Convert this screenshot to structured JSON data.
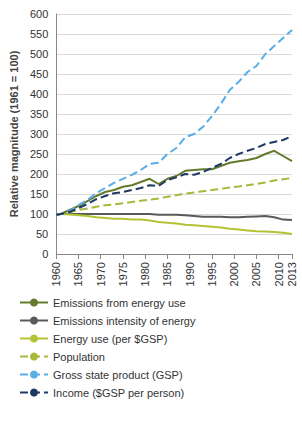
{
  "chart_data": {
    "type": "line",
    "y_label": "Relative magnitude (1961 = 100)",
    "x": [
      1960,
      1961,
      1963,
      1965,
      1967,
      1969,
      1971,
      1973,
      1975,
      1977,
      1979,
      1981,
      1983,
      1985,
      1987,
      1989,
      1991,
      1993,
      1995,
      1997,
      1999,
      2001,
      2003,
      2005,
      2007,
      2009,
      2011,
      2013
    ],
    "series": [
      {
        "name": "Emissions from energy use",
        "color": "#667a2e",
        "line_style": "solid",
        "values": [
          98,
          100,
          110,
          120,
          132,
          145,
          155,
          160,
          168,
          172,
          180,
          188,
          175,
          188,
          195,
          208,
          210,
          212,
          212,
          220,
          228,
          232,
          235,
          240,
          250,
          258,
          245,
          232
        ]
      },
      {
        "name": "Emissions intensity of energy",
        "color": "#5a5a5a",
        "line_style": "solid",
        "values": [
          100,
          100,
          100,
          100,
          100,
          100,
          100,
          100,
          100,
          100,
          100,
          100,
          98,
          98,
          98,
          97,
          95,
          93,
          93,
          93,
          92,
          92,
          93,
          94,
          95,
          92,
          86,
          85
        ]
      },
      {
        "name": "Energy use (per $GSP)",
        "color": "#b3c334",
        "line_style": "solid",
        "values": [
          100,
          100,
          99,
          97,
          95,
          92,
          90,
          88,
          88,
          86,
          86,
          84,
          80,
          78,
          76,
          73,
          72,
          70,
          68,
          66,
          63,
          61,
          59,
          57,
          56,
          55,
          53,
          50
        ]
      },
      {
        "name": "Population",
        "color": "#a9b83a",
        "line_style": "dashed",
        "values": [
          98,
          100,
          104,
          110,
          114,
          118,
          122,
          124,
          127,
          130,
          133,
          136,
          139,
          143,
          147,
          151,
          154,
          157,
          160,
          163,
          166,
          169,
          172,
          175,
          179,
          184,
          187,
          190
        ]
      },
      {
        "name": "Gross state product (GSP)",
        "color": "#5aaee6",
        "line_style": "dashed",
        "values": [
          98,
          100,
          108,
          122,
          135,
          152,
          165,
          178,
          188,
          198,
          210,
          225,
          228,
          250,
          265,
          292,
          300,
          318,
          345,
          375,
          410,
          430,
          455,
          470,
          500,
          520,
          540,
          560
        ]
      },
      {
        "name": "Income ($GSP per person)",
        "color": "#1f3864",
        "line_style": "dashed",
        "values": [
          98,
          100,
          105,
          115,
          125,
          137,
          145,
          152,
          155,
          160,
          165,
          172,
          170,
          185,
          192,
          200,
          198,
          205,
          215,
          225,
          240,
          250,
          258,
          265,
          275,
          280,
          285,
          295
        ]
      }
    ],
    "xlim": [
      1960,
      2013
    ],
    "xticks": [
      1960,
      1965,
      1970,
      1975,
      1980,
      1985,
      1990,
      1995,
      2000,
      2005,
      2010,
      2013
    ],
    "ylim": [
      0,
      600
    ],
    "yticks": [
      0,
      50,
      100,
      150,
      200,
      250,
      300,
      350,
      400,
      450,
      500,
      550,
      600
    ],
    "grid": true,
    "legend": "bottom"
  }
}
